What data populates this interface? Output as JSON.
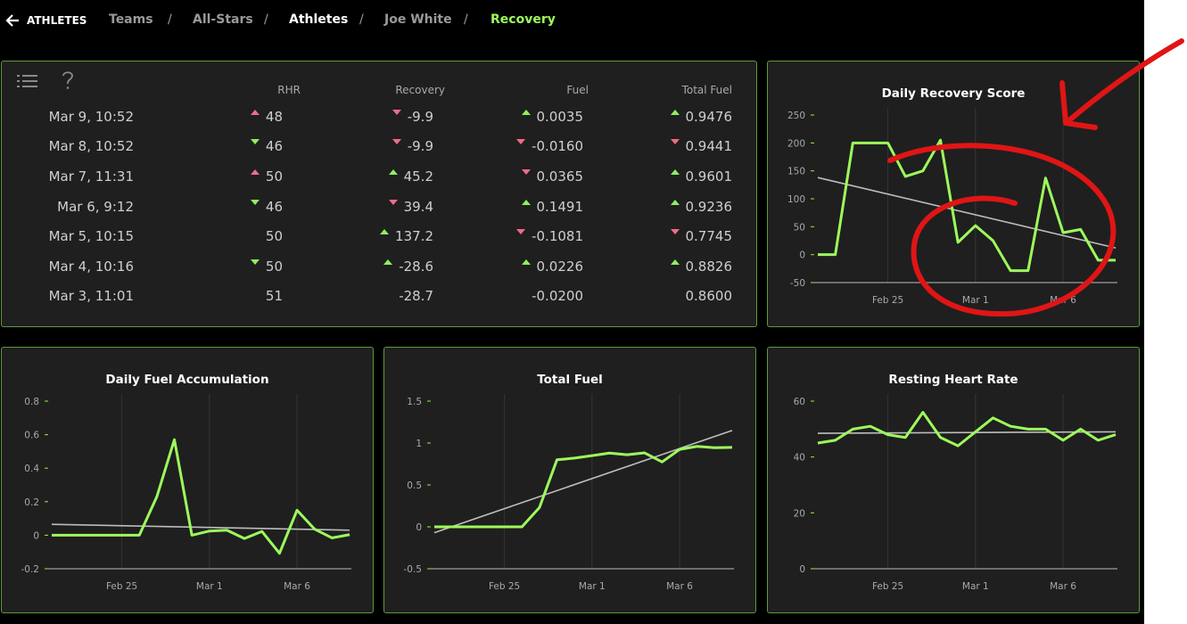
{
  "nav": {
    "back": "ATHLETES",
    "crumbs": [
      "Teams",
      "All-Stars",
      "Athletes",
      "Joe White",
      "Recovery"
    ]
  },
  "table": {
    "headers": [
      "RHR",
      "Recovery",
      "Fuel",
      "Total Fuel"
    ],
    "rows": [
      {
        "date": "Mar 9, 10:52",
        "cells": [
          {
            "text": "48",
            "trend": "up",
            "color": "#f26b8a"
          },
          {
            "text": "-9.9",
            "trend": "down",
            "color": "#f26b8a"
          },
          {
            "text": "0.0035",
            "trend": "up",
            "color": "#8ef05a"
          },
          {
            "text": "0.9476",
            "trend": "up",
            "color": "#8ef05a"
          }
        ]
      },
      {
        "date": "Mar 8, 10:52",
        "cells": [
          {
            "text": "46",
            "trend": "down",
            "color": "#8ef05a"
          },
          {
            "text": "-9.9",
            "trend": "down",
            "color": "#f26b8a"
          },
          {
            "text": "-0.0160",
            "trend": "down",
            "color": "#f26b8a"
          },
          {
            "text": "0.9441",
            "trend": "down",
            "color": "#f26b8a"
          }
        ]
      },
      {
        "date": "Mar 7, 11:31",
        "cells": [
          {
            "text": "50",
            "trend": "up",
            "color": "#f26b8a"
          },
          {
            "text": "45.2",
            "trend": "up",
            "color": "#8ef05a"
          },
          {
            "text": "0.0365",
            "trend": "down",
            "color": "#f26b8a"
          },
          {
            "text": "0.9601",
            "trend": "up",
            "color": "#8ef05a"
          }
        ]
      },
      {
        "date": "Mar 6, 9:12",
        "cells": [
          {
            "text": "46",
            "trend": "down",
            "color": "#8ef05a"
          },
          {
            "text": "39.4",
            "trend": "down",
            "color": "#f26b8a"
          },
          {
            "text": "0.1491",
            "trend": "up",
            "color": "#8ef05a"
          },
          {
            "text": "0.9236",
            "trend": "up",
            "color": "#8ef05a"
          }
        ]
      },
      {
        "date": "Mar 5, 10:15",
        "cells": [
          {
            "text": "50"
          },
          {
            "text": "137.2",
            "trend": "up",
            "color": "#8ef05a"
          },
          {
            "text": "-0.1081",
            "trend": "down",
            "color": "#f26b8a"
          },
          {
            "text": "0.7745",
            "trend": "down",
            "color": "#f26b8a"
          }
        ]
      },
      {
        "date": "Mar 4, 10:16",
        "cells": [
          {
            "text": "50",
            "trend": "down",
            "color": "#8ef05a"
          },
          {
            "text": "-28.6",
            "trend": "up",
            "color": "#8ef05a"
          },
          {
            "text": "0.0226",
            "trend": "up",
            "color": "#8ef05a"
          },
          {
            "text": "0.8826",
            "trend": "up",
            "color": "#8ef05a"
          }
        ]
      },
      {
        "date": "Mar 3, 11:01",
        "cells": [
          {
            "text": "51"
          },
          {
            "text": "-28.7"
          },
          {
            "text": "-0.0200"
          },
          {
            "text": "0.8600"
          }
        ]
      }
    ]
  },
  "chart_data": [
    {
      "type": "line",
      "title": "Daily Recovery Score",
      "categories": [
        null,
        null,
        null,
        null,
        "Feb 25",
        null,
        null,
        null,
        null,
        "Mar 1",
        null,
        null,
        null,
        null,
        "Mar 6",
        null,
        null,
        null
      ],
      "ylim": [
        -50,
        250
      ],
      "yticks": [
        -50,
        0,
        50,
        100,
        150,
        200,
        250
      ],
      "xgrid": true,
      "series": [
        {
          "color": "#9dfb5b",
          "values": [
            0,
            0,
            200,
            200,
            200,
            140,
            150,
            205,
            22,
            52,
            25,
            -28.7,
            -28.6,
            137.2,
            39.4,
            45.2,
            -9.9,
            -9.9
          ]
        }
      ],
      "trend": {
        "color": "#bdbdbd",
        "values": [
          138,
          12
        ]
      }
    },
    {
      "type": "line",
      "title": "Daily Fuel Accumulation",
      "categories": [
        null,
        null,
        null,
        null,
        "Feb 25",
        null,
        null,
        null,
        null,
        "Mar 1",
        null,
        null,
        null,
        null,
        "Mar 6",
        null,
        null,
        null
      ],
      "ylim": [
        -0.2,
        0.8
      ],
      "yticks": [
        -0.2,
        0,
        0.2,
        0.4,
        0.6,
        0.8
      ],
      "xgrid": true,
      "series": [
        {
          "color": "#9dfb5b",
          "values": [
            0,
            0,
            0,
            0,
            0,
            0,
            0.23,
            0.57,
            0,
            0.025,
            0.03,
            -0.02,
            0.0226,
            -0.1081,
            0.1491,
            0.0365,
            -0.016,
            0.0035
          ]
        }
      ],
      "trend": {
        "color": "#bdbdbd",
        "values": [
          0.065,
          0.03
        ]
      }
    },
    {
      "type": "line",
      "title": "Total Fuel",
      "categories": [
        null,
        null,
        null,
        null,
        "Feb 25",
        null,
        null,
        null,
        null,
        "Mar 1",
        null,
        null,
        null,
        null,
        "Mar 6",
        null,
        null,
        null
      ],
      "ylim": [
        -0.5,
        1.5
      ],
      "yticks": [
        -0.5,
        0,
        0.5,
        1,
        1.5
      ],
      "xgrid": true,
      "series": [
        {
          "color": "#9dfb5b",
          "values": [
            0,
            0,
            0,
            0,
            0,
            0,
            0.23,
            0.8,
            0.82,
            0.85,
            0.88,
            0.86,
            0.8826,
            0.7745,
            0.9236,
            0.9601,
            0.9441,
            0.9476
          ]
        }
      ],
      "trend": {
        "color": "#bdbdbd",
        "values": [
          -0.07,
          1.15
        ]
      }
    },
    {
      "type": "line",
      "title": "Resting Heart Rate",
      "categories": [
        null,
        null,
        null,
        null,
        "Feb 25",
        null,
        null,
        null,
        null,
        "Mar 1",
        null,
        null,
        null,
        null,
        "Mar 6",
        null,
        null,
        null
      ],
      "ylim": [
        0,
        60
      ],
      "yticks": [
        0,
        20,
        40,
        60
      ],
      "xgrid": true,
      "series": [
        {
          "color": "#9dfb5b",
          "values": [
            45,
            46,
            50,
            51,
            48,
            47,
            56,
            47,
            44,
            49,
            54,
            51,
            50,
            50,
            46,
            50,
            46,
            48
          ]
        }
      ],
      "trend": {
        "color": "#bdbdbd",
        "values": [
          48.5,
          49
        ]
      }
    }
  ]
}
